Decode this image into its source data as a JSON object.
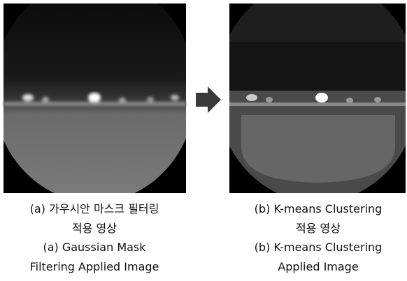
{
  "figures": [
    {
      "caption_lines": [
        "(a) 가우시안 마스크 필터링",
        "적용 영상",
        "(a) Gaussian Mask",
        "Filtering Applied Image"
      ]
    },
    {
      "caption_lines": [
        "(b) K-means Clustering",
        "적용 영상",
        "(b) K-means Clustering",
        "Applied Image"
      ]
    }
  ]
}
